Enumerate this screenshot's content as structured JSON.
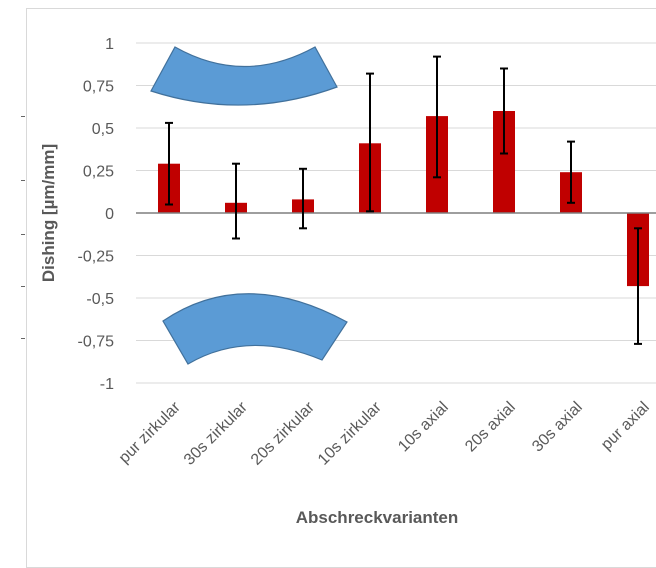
{
  "chart_data": {
    "type": "bar",
    "title": "",
    "xlabel": "Abschreckvarianten",
    "ylabel": "Dishing [µm/mm]",
    "ylim": [
      -1,
      1
    ],
    "yticks": [
      1,
      0.75,
      0.5,
      0.25,
      0,
      -0.25,
      -0.5,
      -0.75,
      -1
    ],
    "ytick_labels": [
      "1",
      "0,75",
      "0,5",
      "0,25",
      "0",
      "-0,25",
      "-0,5",
      "-0,75",
      "-1"
    ],
    "grid": "horizontal",
    "categories": [
      "pur zirkular",
      "30s zirkular",
      "20s zirkular",
      "10s zirkular",
      "10s axial",
      "20s axial",
      "30s axial",
      "pur axial"
    ],
    "series": [
      {
        "values": [
          0.29,
          0.06,
          0.08,
          0.41,
          0.57,
          0.6,
          0.24,
          -0.43
        ],
        "error_low": [
          0.05,
          -0.15,
          -0.09,
          0.01,
          0.21,
          0.35,
          0.06,
          -0.77
        ],
        "error_high": [
          0.53,
          0.29,
          0.26,
          0.82,
          0.92,
          0.85,
          0.42,
          -0.09
        ]
      }
    ],
    "colors": {
      "bar": "#c00000",
      "error_bar": "#000000",
      "lens_fill": "#5b9bd5",
      "lens_stroke": "#41719c",
      "grid": "#d9d9d9"
    },
    "annotations": [
      {
        "shape": "concave-lens-curve",
        "position": "top-left"
      },
      {
        "shape": "convex-lens-curve",
        "position": "bottom-left"
      }
    ]
  }
}
